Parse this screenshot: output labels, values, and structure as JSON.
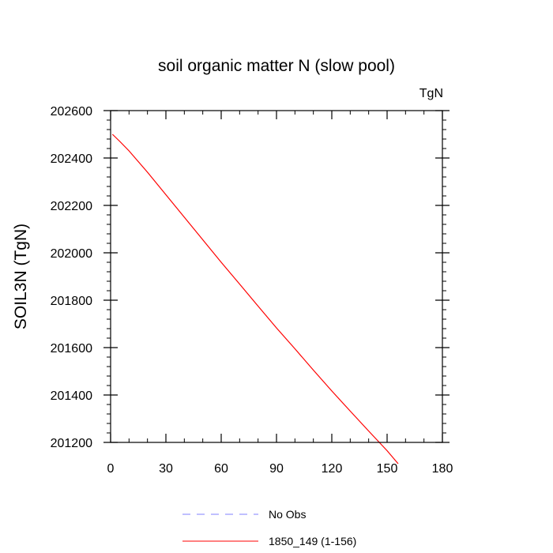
{
  "chart_data": {
    "type": "line",
    "title": "soil organic matter N (slow pool)",
    "units_label": "TgN",
    "ylabel": "SOIL3N  (TgN)",
    "xlabel": "",
    "xlim": [
      0,
      180
    ],
    "ylim": [
      201200,
      202600
    ],
    "x_ticks": [
      0,
      30,
      60,
      90,
      120,
      150,
      180
    ],
    "x_tick_labels": [
      "0",
      "30",
      "60",
      "90",
      "120",
      "150",
      "180"
    ],
    "y_ticks": [
      201200,
      201400,
      201600,
      201800,
      202000,
      202200,
      202400,
      202600
    ],
    "y_tick_labels": [
      "201200",
      "201400",
      "201600",
      "201800",
      "202000",
      "202200",
      "202400",
      "202600"
    ],
    "x_minor_step": 10,
    "y_minor_step": 40,
    "grid": false,
    "series": [
      {
        "name": "No Obs",
        "color": "#8080ff",
        "dash": "dashed",
        "x": [],
        "y": []
      },
      {
        "name": "1850_149 (1-156)",
        "color": "#ff0000",
        "dash": "solid",
        "x": [
          1,
          5,
          10,
          15,
          20,
          30,
          40,
          50,
          60,
          70,
          80,
          90,
          100,
          110,
          120,
          130,
          140,
          150,
          156
        ],
        "y": [
          202500,
          202470,
          202430,
          202385,
          202340,
          202245,
          202150,
          202055,
          201960,
          201868,
          201775,
          201683,
          201595,
          201505,
          201417,
          201332,
          201248,
          201165,
          201110
        ]
      }
    ],
    "legend": {
      "position": "bottom-left",
      "entries": [
        "No Obs",
        "1850_149 (1-156)"
      ]
    }
  }
}
